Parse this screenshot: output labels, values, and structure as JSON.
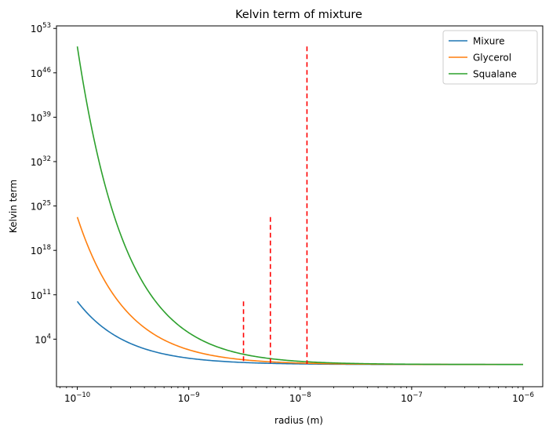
{
  "chart_data": {
    "type": "line",
    "title": "Kelvin term of mixture",
    "xlabel": "radius (m)",
    "ylabel": "Kelvin term",
    "xscale": "log",
    "yscale": "log",
    "xlim": [
      6.5e-11,
      1.5e-06
    ],
    "ylim_log10": [
      -3.5,
      53.4
    ],
    "x_ticks": [
      {
        "base": "10",
        "exp": "−10",
        "log10": -10
      },
      {
        "base": "10",
        "exp": "−9",
        "log10": -9
      },
      {
        "base": "10",
        "exp": "−8",
        "log10": -8
      },
      {
        "base": "10",
        "exp": "−7",
        "log10": -7
      },
      {
        "base": "10",
        "exp": "−6",
        "log10": -6
      }
    ],
    "y_ticks": [
      {
        "base": "10",
        "exp": "4",
        "log10": 4
      },
      {
        "base": "10",
        "exp": "11",
        "log10": 11
      },
      {
        "base": "10",
        "exp": "18",
        "log10": 18
      },
      {
        "base": "10",
        "exp": "25",
        "log10": 25
      },
      {
        "base": "10",
        "exp": "32",
        "log10": 32
      },
      {
        "base": "10",
        "exp": "39",
        "log10": 39
      },
      {
        "base": "10",
        "exp": "46",
        "log10": 46
      },
      {
        "base": "10",
        "exp": "53",
        "log10": 53
      }
    ],
    "series": [
      {
        "name": "Mixure",
        "color": "#1f77b4",
        "kelvin_log10_at_1e-10": 9.95
      },
      {
        "name": "Glycerol",
        "color": "#ff7f0e",
        "kelvin_log10_at_1e-10": 23.25
      },
      {
        "name": "Squalane",
        "color": "#2ca02c",
        "kelvin_log10_at_1e-10": 50.15
      }
    ],
    "vlines": [
      {
        "x": 3.1e-09,
        "ymax_log10": 9.95,
        "color": "#ff0000",
        "style": "dashed"
      },
      {
        "x": 5.4e-09,
        "ymax_log10": 23.25,
        "color": "#ff0000",
        "style": "dashed"
      },
      {
        "x": 1.15e-08,
        "ymax_log10": 50.15,
        "color": "#ff0000",
        "style": "dashed"
      }
    ],
    "legend": {
      "placement": "upper-right"
    },
    "grid": false
  }
}
